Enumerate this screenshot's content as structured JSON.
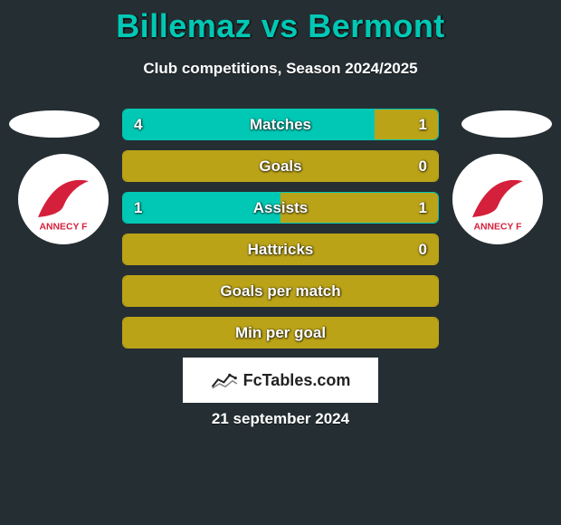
{
  "title": "Billemaz vs Bermont",
  "subtitle": "Club competitions, Season 2024/2025",
  "date": "21 september 2024",
  "brand": "FcTables.com",
  "colors": {
    "left": "#00c8b4",
    "right": "#bba318",
    "background": "#252e32",
    "white": "#ffffff"
  },
  "badge_text": "ANNECY F",
  "rows": [
    {
      "label": "Matches",
      "left": "4",
      "right": "1",
      "left_num": 4,
      "right_num": 1
    },
    {
      "label": "Goals",
      "left": "",
      "right": "0",
      "left_num": 0,
      "right_num": 0
    },
    {
      "label": "Assists",
      "left": "1",
      "right": "1",
      "left_num": 1,
      "right_num": 1
    },
    {
      "label": "Hattricks",
      "left": "",
      "right": "0",
      "left_num": 0,
      "right_num": 0
    },
    {
      "label": "Goals per match",
      "left": "",
      "right": "",
      "left_num": 0,
      "right_num": 0
    },
    {
      "label": "Min per goal",
      "left": "",
      "right": "",
      "left_num": 0,
      "right_num": 0
    }
  ]
}
